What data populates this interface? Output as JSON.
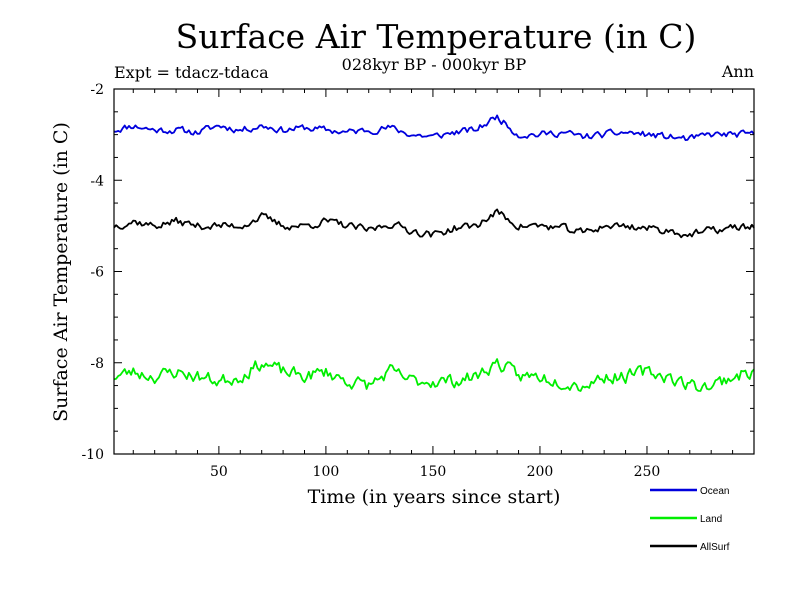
{
  "chart_data": {
    "type": "line",
    "title": "Surface Air Temperature (in C)",
    "subtitle": "028kyr BP - 000kyr BP",
    "experiment_label": "Expt = tdacz-tdaca",
    "season_label": "Ann",
    "xlabel": "Time (in years since start)",
    "ylabel": "Surface Air Temperature (in C)",
    "xlim": [
      1,
      300
    ],
    "ylim": [
      -10,
      -2
    ],
    "x_ticks": [
      50,
      100,
      150,
      200,
      250
    ],
    "x_tick_labels": [
      "50",
      "100",
      "150",
      "200",
      "250"
    ],
    "y_ticks": [
      -10,
      -8,
      -6,
      -4,
      -2
    ],
    "y_tick_labels": [
      "-10",
      "-8",
      "-6",
      "-4",
      "-2"
    ],
    "legend_position": "bottom-right",
    "series": [
      {
        "name": "Ocean",
        "color": "#0000dd",
        "knots_x": [
          1,
          10,
          20,
          30,
          40,
          50,
          60,
          70,
          80,
          90,
          100,
          110,
          120,
          130,
          140,
          150,
          160,
          170,
          180,
          190,
          200,
          210,
          220,
          230,
          240,
          250,
          260,
          270,
          280,
          290,
          300
        ],
        "knots_y": [
          -2.9,
          -2.8,
          -2.9,
          -2.9,
          -2.95,
          -2.8,
          -2.9,
          -2.8,
          -2.9,
          -2.85,
          -2.9,
          -2.95,
          -2.9,
          -2.85,
          -3.0,
          -3.05,
          -2.95,
          -2.9,
          -2.6,
          -3.0,
          -3.0,
          -2.95,
          -3.05,
          -3.0,
          -2.95,
          -3.0,
          -3.05,
          -3.1,
          -3.0,
          -3.0,
          -3.0
        ],
        "noise": 0.09,
        "seed": 11
      },
      {
        "name": "Land",
        "color": "#00ee00",
        "knots_x": [
          1,
          10,
          20,
          30,
          40,
          50,
          60,
          70,
          80,
          90,
          100,
          110,
          120,
          130,
          140,
          150,
          160,
          170,
          180,
          190,
          200,
          210,
          220,
          230,
          240,
          250,
          260,
          270,
          280,
          290,
          300
        ],
        "knots_y": [
          -8.3,
          -8.2,
          -8.3,
          -8.2,
          -8.3,
          -8.4,
          -8.3,
          -8.0,
          -8.2,
          -8.3,
          -8.2,
          -8.4,
          -8.5,
          -8.2,
          -8.4,
          -8.4,
          -8.4,
          -8.3,
          -8.0,
          -8.3,
          -8.3,
          -8.4,
          -8.5,
          -8.3,
          -8.3,
          -8.2,
          -8.3,
          -8.5,
          -8.5,
          -8.3,
          -8.2
        ],
        "noise": 0.17,
        "seed": 23
      },
      {
        "name": "AllSurf",
        "color": "#000000",
        "knots_x": [
          1,
          10,
          20,
          30,
          40,
          50,
          60,
          70,
          80,
          90,
          100,
          110,
          120,
          130,
          140,
          150,
          160,
          170,
          180,
          190,
          200,
          210,
          220,
          230,
          240,
          250,
          260,
          270,
          280,
          290,
          300
        ],
        "knots_y": [
          -5.0,
          -4.9,
          -5.0,
          -4.9,
          -5.0,
          -5.0,
          -5.0,
          -4.8,
          -5.0,
          -5.0,
          -4.9,
          -5.0,
          -5.1,
          -4.95,
          -5.1,
          -5.2,
          -5.05,
          -5.0,
          -4.7,
          -5.0,
          -5.0,
          -5.05,
          -5.15,
          -5.0,
          -5.0,
          -5.05,
          -5.1,
          -5.2,
          -5.1,
          -5.05,
          -5.0
        ],
        "noise": 0.1,
        "seed": 37
      }
    ]
  }
}
